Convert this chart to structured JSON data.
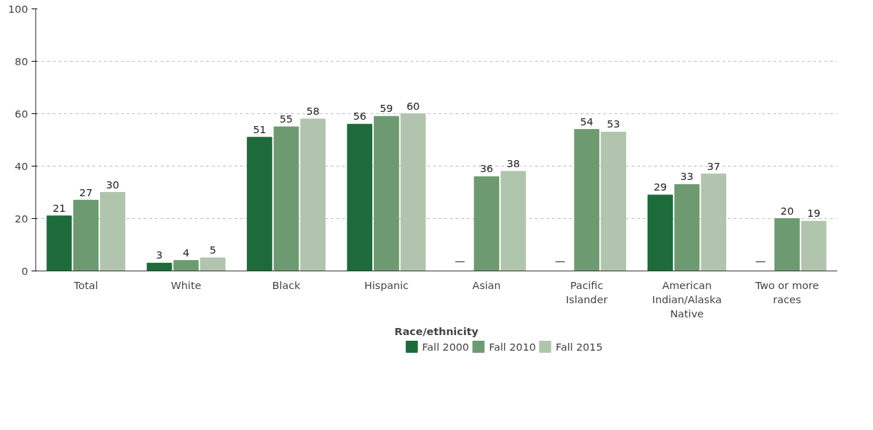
{
  "chart_data": {
    "type": "bar",
    "xlabel": "Race/ethnicity",
    "categories": [
      "Total",
      "White",
      "Black",
      "Hispanic",
      "Asian",
      "Pacific Islander",
      "American Indian/Alaska Native",
      "Two or more races"
    ],
    "series": [
      {
        "name": "Fall 2000",
        "color": "#1d6b3a",
        "values": [
          21,
          3,
          51,
          56,
          null,
          null,
          29,
          null
        ],
        "value_labels": [
          "21",
          "3",
          "51",
          "56",
          "—",
          "—",
          "29",
          "—"
        ]
      },
      {
        "name": "Fall 2010",
        "color": "#6e9a72",
        "values": [
          27,
          4,
          55,
          59,
          36,
          54,
          33,
          20
        ],
        "value_labels": [
          "27",
          "4",
          "55",
          "59",
          "36",
          "54",
          "33",
          "20"
        ]
      },
      {
        "name": "Fall 2015",
        "color": "#b1c4ad",
        "values": [
          30,
          5,
          58,
          60,
          38,
          53,
          37,
          19
        ],
        "value_labels": [
          "30",
          "5",
          "58",
          "60",
          "38",
          "53",
          "37",
          "19"
        ]
      }
    ],
    "ylim": [
      0,
      100
    ],
    "yticks": [
      0,
      20,
      40,
      60,
      80,
      100
    ],
    "grid": "y",
    "legend": "bottom"
  }
}
